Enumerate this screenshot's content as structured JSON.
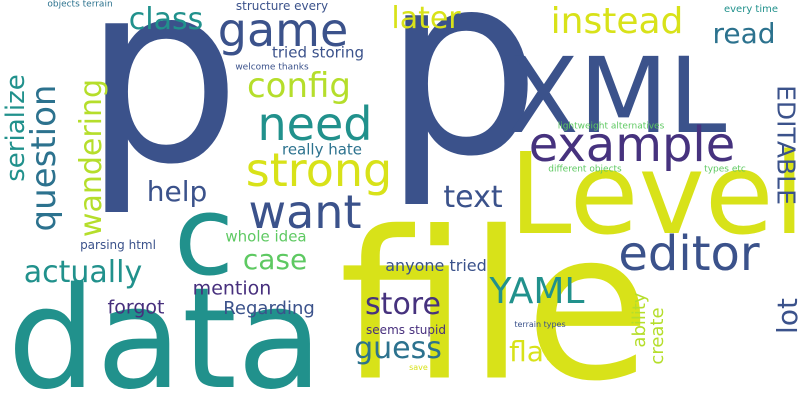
{
  "colors": {
    "background": "#ffffff",
    "navy": "#3b528b",
    "indigo": "#472f7d",
    "deep_purple": "#46327e",
    "teal": "#21918c",
    "teal_dark": "#2c728e",
    "green": "#35b779",
    "lime": "#b5de2b",
    "yellow": "#d8e219",
    "light_green": "#5ec962"
  },
  "words": [
    {
      "id": "p-1",
      "text": "p"
    },
    {
      "id": "p-2",
      "text": "p"
    },
    {
      "id": "file",
      "text": "file"
    },
    {
      "id": "data",
      "text": "data"
    },
    {
      "id": "level",
      "text": "Level"
    },
    {
      "id": "xml",
      "text": "XML"
    },
    {
      "id": "c",
      "text": "c"
    },
    {
      "id": "example",
      "text": "example"
    },
    {
      "id": "editor",
      "text": "editor"
    },
    {
      "id": "strong",
      "text": "strong"
    },
    {
      "id": "want",
      "text": "want"
    },
    {
      "id": "need",
      "text": "need"
    },
    {
      "id": "game",
      "text": "game"
    },
    {
      "id": "instead",
      "text": "instead"
    },
    {
      "id": "editable",
      "text": "EDITABLE"
    },
    {
      "id": "yaml",
      "text": "YAML"
    },
    {
      "id": "question",
      "text": "question"
    },
    {
      "id": "wandering",
      "text": "wandering"
    },
    {
      "id": "serialize",
      "text": "serialize"
    },
    {
      "id": "config",
      "text": "config"
    },
    {
      "id": "class",
      "text": "class"
    },
    {
      "id": "later",
      "text": "later"
    },
    {
      "id": "read",
      "text": "read"
    },
    {
      "id": "help",
      "text": "help"
    },
    {
      "id": "text",
      "text": "text"
    },
    {
      "id": "actually",
      "text": "actually"
    },
    {
      "id": "case",
      "text": "case"
    },
    {
      "id": "store",
      "text": "store"
    },
    {
      "id": "guess",
      "text": "guess"
    },
    {
      "id": "flat",
      "text": "flat"
    },
    {
      "id": "lot",
      "text": "lot"
    },
    {
      "id": "mention",
      "text": "mention"
    },
    {
      "id": "forgot",
      "text": "forgot"
    },
    {
      "id": "regarding",
      "text": "Regarding"
    },
    {
      "id": "anyone-tried",
      "text": "anyone tried"
    },
    {
      "id": "really-hate",
      "text": "really hate"
    },
    {
      "id": "whole-idea",
      "text": "whole idea"
    },
    {
      "id": "ability",
      "text": "ability"
    },
    {
      "id": "create",
      "text": "create"
    },
    {
      "id": "tried-storing",
      "text": "tried storing"
    },
    {
      "id": "structure-every",
      "text": "structure every"
    },
    {
      "id": "parsing-html",
      "text": "parsing html"
    },
    {
      "id": "seems-stupid",
      "text": "seems stupid"
    },
    {
      "id": "every-time",
      "text": "every time"
    },
    {
      "id": "objects-terrain",
      "text": "objects terrain"
    },
    {
      "id": "welcome-thanks",
      "text": "welcome thanks"
    },
    {
      "id": "lightweight-alternatives",
      "text": "lightweight alternatives"
    },
    {
      "id": "different-objects",
      "text": "different objects"
    },
    {
      "id": "types-etc",
      "text": "types etc"
    },
    {
      "id": "terrain-types",
      "text": "terrain types"
    },
    {
      "id": "save-new",
      "text": "save new"
    }
  ]
}
